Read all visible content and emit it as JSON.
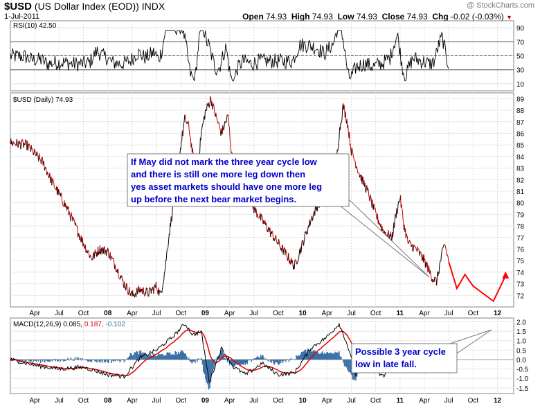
{
  "header": {
    "symbol": "$USD",
    "name": "(US Dollar Index (EOD))",
    "exchange": "INDX",
    "date": "1-Jul-2011",
    "watermark": "@ StockCharts.com",
    "open_label": "Open",
    "open": "74.93",
    "high_label": "High",
    "high": "74.93",
    "low_label": "Low",
    "low": "74.93",
    "close_label": "Close",
    "close": "74.93",
    "chg_label": "Chg",
    "chg": "-0.02 (-0.03%)"
  },
  "colors": {
    "price_up": "#000000",
    "price_down": "#c00000",
    "rsi_line": "#000000",
    "rsi_overbought_fill": "#6b8e5a",
    "rsi_oversold_fill": "#8b5a4a",
    "macd_line": "#000000",
    "signal_line": "#e00000",
    "histogram": "#3a6ea5",
    "projection": "#ff0000",
    "annotation_text": "#0000cc"
  },
  "chart_data": [
    {
      "type": "line",
      "panel": "rsi",
      "label": "RSI(10) 42.50",
      "ylim": [
        0,
        100
      ],
      "yticks": [
        10,
        30,
        50,
        70,
        90
      ],
      "reference_lines": [
        30,
        50,
        70
      ],
      "last_value": 42.5
    },
    {
      "type": "line",
      "panel": "price",
      "label": "$USD (Daily) 74.93",
      "ylim": [
        71,
        89.5
      ],
      "yticks": [
        72,
        73,
        74,
        75,
        76,
        77,
        78,
        79,
        80,
        81,
        82,
        83,
        84,
        85,
        86,
        87,
        88,
        89
      ],
      "x_labels": [
        "Apr",
        "Jul",
        "Oct",
        "08",
        "Apr",
        "Jul",
        "Oct",
        "09",
        "Apr",
        "Jul",
        "Oct",
        "10",
        "Apr",
        "Jul",
        "Oct",
        "11",
        "Apr",
        "Jul",
        "Oct",
        "12"
      ],
      "x_label_months": [
        3,
        6,
        9,
        12,
        15,
        18,
        21,
        24,
        27,
        30,
        33,
        36,
        39,
        42,
        45,
        48,
        51,
        54,
        57,
        60
      ],
      "anchors": [
        [
          0,
          85.2
        ],
        [
          2,
          85.0
        ],
        [
          4,
          83.5
        ],
        [
          5,
          82.0
        ],
        [
          7,
          79.5
        ],
        [
          9,
          76.5
        ],
        [
          10,
          75.2
        ],
        [
          11,
          76.0
        ],
        [
          12,
          75.8
        ],
        [
          13,
          74.5
        ],
        [
          14,
          73.0
        ],
        [
          15,
          72.0
        ],
        [
          16,
          72.5
        ],
        [
          17,
          72.2
        ],
        [
          18,
          72.8
        ],
        [
          18.5,
          72.0
        ],
        [
          19,
          74.0
        ],
        [
          19.5,
          77.0
        ],
        [
          20,
          79.5
        ],
        [
          20.5,
          82.0
        ],
        [
          21,
          85.0
        ],
        [
          21.5,
          87.3
        ],
        [
          22,
          86.5
        ],
        [
          22.5,
          84.0
        ],
        [
          23,
          82.0
        ],
        [
          23.5,
          86.0
        ],
        [
          24,
          87.8
        ],
        [
          24.7,
          89.0
        ],
        [
          25.3,
          87.5
        ],
        [
          26,
          86.0
        ],
        [
          26.8,
          87.5
        ],
        [
          27.3,
          84.0
        ],
        [
          28,
          82.0
        ],
        [
          29,
          81.0
        ],
        [
          30,
          79.5
        ],
        [
          31,
          78.5
        ],
        [
          32,
          77.5
        ],
        [
          33,
          76.5
        ],
        [
          34,
          75.5
        ],
        [
          35,
          74.5
        ],
        [
          36,
          76.5
        ],
        [
          37,
          78.5
        ],
        [
          38,
          80.0
        ],
        [
          39,
          80.5
        ],
        [
          40,
          82.5
        ],
        [
          40.5,
          86.0
        ],
        [
          41,
          88.4
        ],
        [
          41.5,
          87.0
        ],
        [
          42,
          84.5
        ],
        [
          43,
          82.5
        ],
        [
          44,
          81.0
        ],
        [
          45,
          79.0
        ],
        [
          46,
          77.5
        ],
        [
          47,
          77.0
        ],
        [
          47.5,
          79.0
        ],
        [
          48,
          80.5
        ],
        [
          48.5,
          78.0
        ],
        [
          49,
          76.5
        ],
        [
          50,
          76.0
        ],
        [
          51,
          75.0
        ],
        [
          52,
          73.5
        ],
        [
          52.5,
          73.2
        ],
        [
          53,
          75.0
        ],
        [
          53.5,
          76.5
        ],
        [
          54,
          74.9
        ]
      ],
      "projection": [
        [
          54,
          74.9
        ],
        [
          55,
          72.6
        ],
        [
          56,
          73.8
        ],
        [
          57,
          72.8
        ],
        [
          59.5,
          71.5
        ],
        [
          61,
          73.7
        ]
      ],
      "last_value": 74.93
    },
    {
      "type": "line",
      "panel": "macd",
      "label": "MACD(12,26,9)",
      "macd": 0.085,
      "signal": 0.187,
      "histogram": -0.102,
      "ylim": [
        -1.8,
        2.2
      ],
      "yticks": [
        -1.5,
        -1.0,
        -0.5,
        0.0,
        0.5,
        1.0,
        1.5,
        2.0
      ],
      "anchors": [
        [
          0,
          0.0
        ],
        [
          3,
          -0.3
        ],
        [
          6,
          -0.5
        ],
        [
          9,
          -0.4
        ],
        [
          12,
          -0.8
        ],
        [
          14,
          -0.9
        ],
        [
          16,
          0.1
        ],
        [
          18,
          0.5
        ],
        [
          20,
          1.2
        ],
        [
          21.5,
          1.9
        ],
        [
          22.5,
          1.3
        ],
        [
          23.5,
          1.5
        ],
        [
          24.5,
          -1.2
        ],
        [
          26,
          0.6
        ],
        [
          27.5,
          -0.4
        ],
        [
          29,
          -0.8
        ],
        [
          31,
          -0.2
        ],
        [
          33,
          -0.8
        ],
        [
          35,
          -0.7
        ],
        [
          37,
          0.6
        ],
        [
          39,
          1.2
        ],
        [
          40.5,
          1.9
        ],
        [
          41.5,
          0.8
        ],
        [
          42.5,
          -0.8
        ],
        [
          44,
          -0.4
        ],
        [
          46,
          -0.9
        ],
        [
          47.5,
          0.3
        ],
        [
          49,
          -0.4
        ],
        [
          51,
          -0.6
        ],
        [
          52,
          -0.3
        ],
        [
          53,
          0.1
        ],
        [
          54,
          0.085
        ]
      ]
    }
  ],
  "annotations": [
    {
      "text": "If May did not mark the three year cycle low and there is still one more leg down then yes asset markets should have one more leg up before the next bear market begins.",
      "lines": [
        "If May did not mark the three year cycle low",
        "and there is still one more leg down then",
        "yes asset markets should have one more leg",
        "up before the next bear market begins."
      ]
    },
    {
      "text": "Possible 3 year cycle low in late fall.",
      "lines": [
        "Possible 3 year cycle",
        "low in late fall."
      ]
    }
  ]
}
